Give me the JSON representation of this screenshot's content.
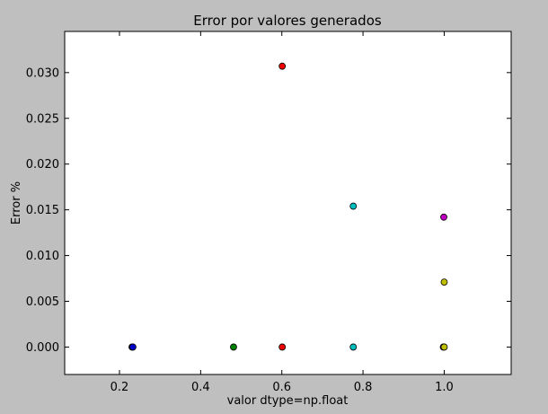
{
  "chart_data": {
    "type": "scatter",
    "title": "Error por valores generados",
    "xlabel": "valor dtype=np.float",
    "ylabel": "Error %",
    "xlim": [
      0.065,
      1.165
    ],
    "ylim": [
      -0.003,
      0.0345
    ],
    "xticks": [
      0.2,
      0.4,
      0.6,
      0.8,
      1.0
    ],
    "xtick_labels": [
      "0.2",
      "0.4",
      "0.6",
      "0.8",
      "1.0"
    ],
    "yticks": [
      0.0,
      0.005,
      0.01,
      0.015,
      0.02,
      0.025,
      0.03
    ],
    "ytick_labels": [
      "0.000",
      "0.005",
      "0.010",
      "0.015",
      "0.020",
      "0.025",
      "0.030"
    ],
    "grid": false,
    "legend": "none",
    "points": [
      {
        "x": 0.231,
        "y": 0.0,
        "color": "#0000cc"
      },
      {
        "x": 0.233,
        "y": 0.0,
        "color": "#0000cc"
      },
      {
        "x": 0.481,
        "y": 0.0,
        "color": "#007f00"
      },
      {
        "x": 0.601,
        "y": 0.0307,
        "color": "#ee0000"
      },
      {
        "x": 0.601,
        "y": 0.0,
        "color": "#ee0000"
      },
      {
        "x": 0.776,
        "y": 0.0154,
        "color": "#00bfbf"
      },
      {
        "x": 0.776,
        "y": 0.0,
        "color": "#00bfbf"
      },
      {
        "x": 0.999,
        "y": 0.0142,
        "color": "#bf00bf"
      },
      {
        "x": 0.998,
        "y": 0.0,
        "color": "#bf00bf"
      },
      {
        "x": 1.0,
        "y": 0.0071,
        "color": "#bfbf00"
      },
      {
        "x": 1.0,
        "y": 0.0,
        "color": "#bfbf00"
      }
    ]
  }
}
